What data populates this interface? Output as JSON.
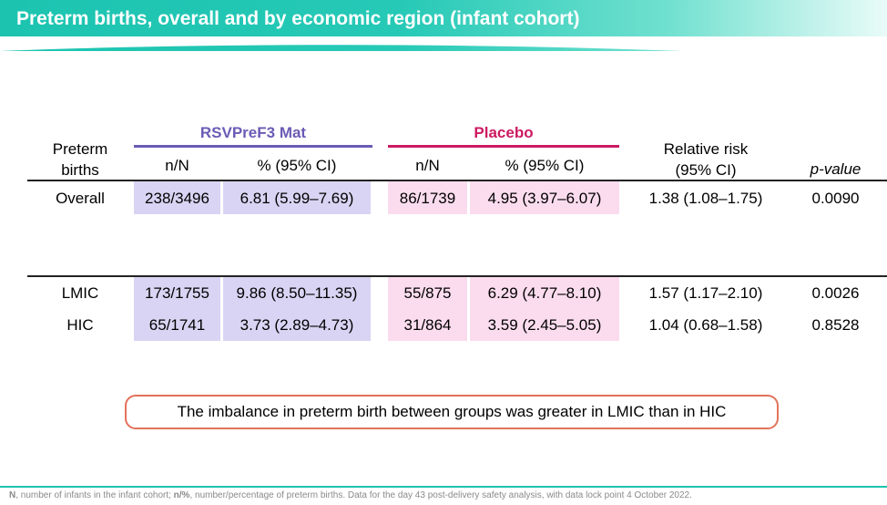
{
  "title": "Preterm births, overall and by economic region (infant cohort)",
  "colors": {
    "banner": "#1cc4b0",
    "rsv": "#6b5bb5",
    "placebo": "#cc1a62",
    "callout_border": "#e2725b"
  },
  "table": {
    "row_header": "Preterm\nbirths",
    "groups": {
      "rsv": "RSVPreF3 Mat",
      "placebo": "Placebo"
    },
    "subheaders": {
      "rsv_n": "n/N",
      "rsv_pct": "% (95% CI)",
      "pl_n": "n/N",
      "pl_pct": "% (95% CI)"
    },
    "rr_header": "Relative risk\n(95% CI)",
    "p_header": "p-value",
    "rows": [
      {
        "label": "Overall",
        "rsv_n": "238/3496",
        "rsv_pct": "6.81 (5.99–7.69)",
        "pl_n": "86/1739",
        "pl_pct": "4.95 (3.97–6.07)",
        "rr": "1.38 (1.08–1.75)",
        "p": "0.0090"
      },
      {
        "label": "LMIC",
        "rsv_n": "173/1755",
        "rsv_pct": "9.86 (8.50–11.35)",
        "pl_n": "55/875",
        "pl_pct": "6.29 (4.77–8.10)",
        "rr": "1.57 (1.17–2.10)",
        "p": "0.0026"
      },
      {
        "label": "HIC",
        "rsv_n": "65/1741",
        "rsv_pct": "3.73 (2.89–4.73)",
        "pl_n": "31/864",
        "pl_pct": "3.59 (2.45–5.05)",
        "rr": "1.04 (0.68–1.58)",
        "p": "0.8528"
      }
    ]
  },
  "callout": "The imbalance in preterm birth between groups was greater in LMIC than in HIC",
  "footer": {
    "n_abbrev": "N",
    "n_def": ", number of infants in the infant cohort; ",
    "np_abbrev": "n/%",
    "np_def": ", number/percentage of preterm births. Data for the day 43 post-delivery safety analysis, with data lock point 4 October 2022."
  }
}
